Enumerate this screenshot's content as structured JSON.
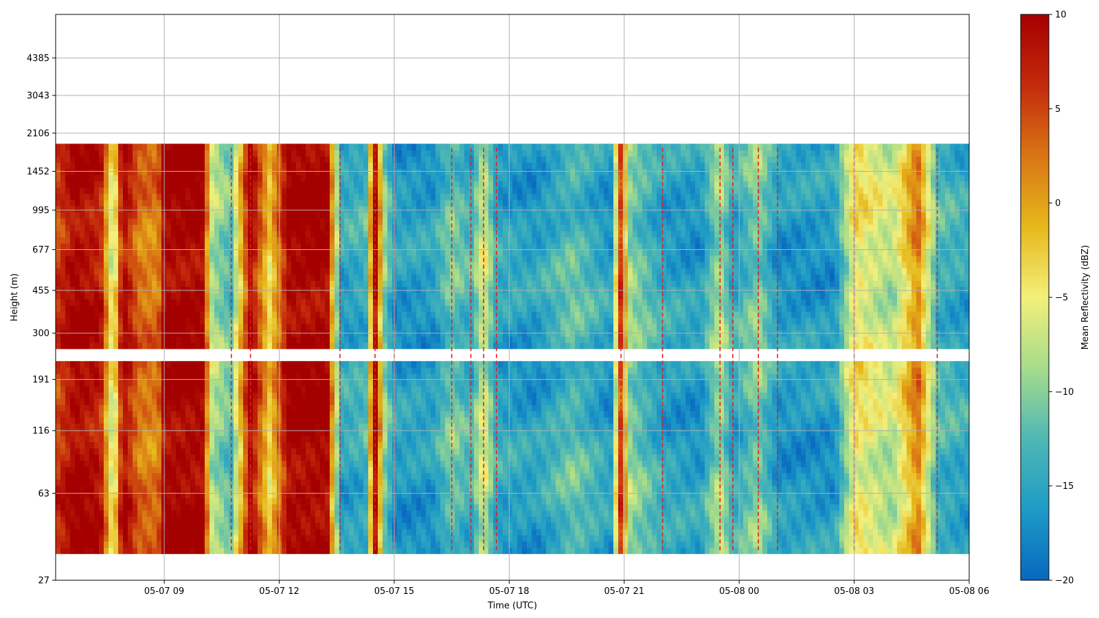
{
  "chart_data": {
    "type": "heatmap",
    "title": "",
    "xlabel": "Time (UTC)",
    "ylabel": "Height (m)",
    "x_range": [
      "2025-05-07 06:10",
      "2025-05-08 06:00"
    ],
    "x_ticks": [
      {
        "time": "2025-05-07 09:00",
        "label": "05-07 09"
      },
      {
        "time": "2025-05-07 12:00",
        "label": "05-07 12"
      },
      {
        "time": "2025-05-07 15:00",
        "label": "05-07 15"
      },
      {
        "time": "2025-05-07 18:00",
        "label": "05-07 18"
      },
      {
        "time": "2025-05-07 21:00",
        "label": "05-07 21"
      },
      {
        "time": "2025-05-08 00:00",
        "label": "05-08 00"
      },
      {
        "time": "2025-05-08 03:00",
        "label": "05-08 03"
      },
      {
        "time": "2025-05-08 06:00",
        "label": "05-08 06"
      }
    ],
    "y_scale": "log",
    "y_range": [
      27,
      6700
    ],
    "y_ticks": [
      27,
      63,
      116,
      191,
      300,
      455,
      677,
      995,
      1452,
      2106,
      3043,
      4385
    ],
    "data_height_range": [
      35,
      1900
    ],
    "no_data_height_band": [
      230,
      262
    ],
    "grid": true,
    "colorbar": {
      "label": "Mean Reflectivity (dBZ)",
      "min": -20,
      "max": 10,
      "ticks": [
        -20,
        -15,
        -10,
        -5,
        0,
        5,
        10
      ],
      "colors": [
        "#0868c0",
        "#1e9bc6",
        "#4fb8b4",
        "#a6dc8a",
        "#f3ef7a",
        "#e6b81b",
        "#d97514",
        "#c42a0c",
        "#a50000"
      ]
    },
    "contour": {
      "color": "#e02020",
      "style": "dashed"
    },
    "time_profile": [
      {
        "time": "2025-05-07 06:10",
        "dbz": 5
      },
      {
        "time": "2025-05-07 06:40",
        "dbz": 10
      },
      {
        "time": "2025-05-07 07:20",
        "dbz": 8
      },
      {
        "time": "2025-05-07 07:40",
        "dbz": -8
      },
      {
        "time": "2025-05-07 07:55",
        "dbz": 10
      },
      {
        "time": "2025-05-07 08:20",
        "dbz": 3
      },
      {
        "time": "2025-05-07 08:50",
        "dbz": 2
      },
      {
        "time": "2025-05-07 09:00",
        "dbz": 10
      },
      {
        "time": "2025-05-07 10:00",
        "dbz": 10
      },
      {
        "time": "2025-05-07 10:15",
        "dbz": -8
      },
      {
        "time": "2025-05-07 10:45",
        "dbz": -12
      },
      {
        "time": "2025-05-07 11:15",
        "dbz": 10
      },
      {
        "time": "2025-05-07 11:45",
        "dbz": -3
      },
      {
        "time": "2025-05-07 12:15",
        "dbz": 10
      },
      {
        "time": "2025-05-07 13:15",
        "dbz": 10
      },
      {
        "time": "2025-05-07 13:35",
        "dbz": -15
      },
      {
        "time": "2025-05-07 14:15",
        "dbz": -14
      },
      {
        "time": "2025-05-07 14:30",
        "dbz": 10
      },
      {
        "time": "2025-05-07 14:45",
        "dbz": -10
      },
      {
        "time": "2025-05-07 15:00",
        "dbz": -16
      },
      {
        "time": "2025-05-07 16:00",
        "dbz": -16
      },
      {
        "time": "2025-05-07 16:30",
        "dbz": -11
      },
      {
        "time": "2025-05-07 17:00",
        "dbz": -14
      },
      {
        "time": "2025-05-07 17:20",
        "dbz": -6
      },
      {
        "time": "2025-05-07 17:40",
        "dbz": -15
      },
      {
        "time": "2025-05-07 18:40",
        "dbz": -16
      },
      {
        "time": "2025-05-07 19:40",
        "dbz": -12
      },
      {
        "time": "2025-05-07 20:40",
        "dbz": -16
      },
      {
        "time": "2025-05-07 20:55",
        "dbz": 6
      },
      {
        "time": "2025-05-07 21:10",
        "dbz": -10
      },
      {
        "time": "2025-05-07 22:00",
        "dbz": -15
      },
      {
        "time": "2025-05-07 23:00",
        "dbz": -16
      },
      {
        "time": "2025-05-07 23:30",
        "dbz": -8
      },
      {
        "time": "2025-05-07 23:50",
        "dbz": -15
      },
      {
        "time": "2025-05-08 00:30",
        "dbz": -10
      },
      {
        "time": "2025-05-08 01:00",
        "dbz": -16
      },
      {
        "time": "2025-05-08 02:30",
        "dbz": -16
      },
      {
        "time": "2025-05-08 03:00",
        "dbz": -4
      },
      {
        "time": "2025-05-08 04:00",
        "dbz": -8
      },
      {
        "time": "2025-05-08 04:40",
        "dbz": 2
      },
      {
        "time": "2025-05-08 05:10",
        "dbz": -13
      },
      {
        "time": "2025-05-08 06:00",
        "dbz": -15
      }
    ]
  }
}
